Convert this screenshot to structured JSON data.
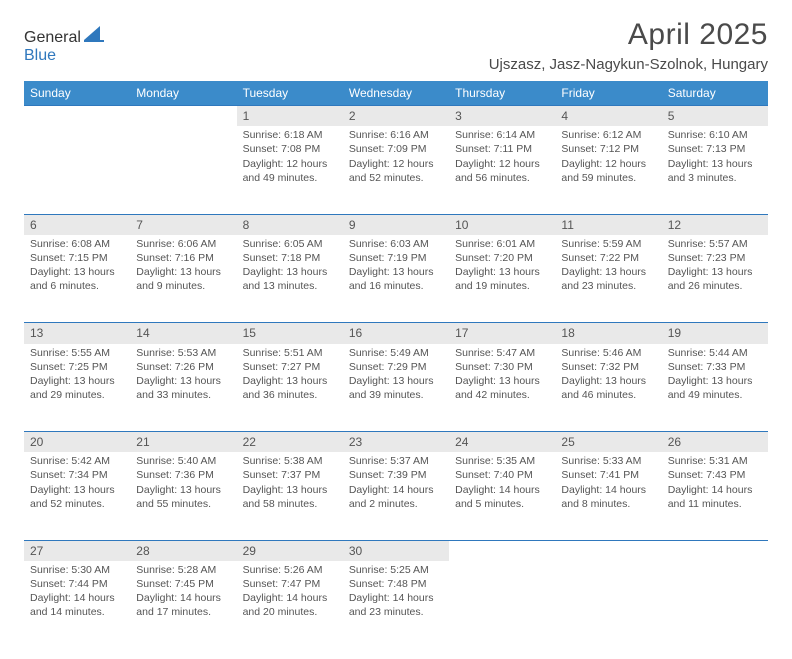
{
  "logo": {
    "part1": "General",
    "part2": "Blue",
    "shape_color": "#2f78bd"
  },
  "title": "April 2025",
  "location": "Ujszasz, Jasz-Nagykun-Szolnok, Hungary",
  "header_bg": "#3b8bca",
  "daynum_bg": "#e9e9e9",
  "border_color": "#2f78bd",
  "text_color": "#555555",
  "day_names": [
    "Sunday",
    "Monday",
    "Tuesday",
    "Wednesday",
    "Thursday",
    "Friday",
    "Saturday"
  ],
  "weeks": [
    [
      null,
      null,
      {
        "n": "1",
        "sr": "Sunrise: 6:18 AM",
        "ss": "Sunset: 7:08 PM",
        "dl": "Daylight: 12 hours and 49 minutes."
      },
      {
        "n": "2",
        "sr": "Sunrise: 6:16 AM",
        "ss": "Sunset: 7:09 PM",
        "dl": "Daylight: 12 hours and 52 minutes."
      },
      {
        "n": "3",
        "sr": "Sunrise: 6:14 AM",
        "ss": "Sunset: 7:11 PM",
        "dl": "Daylight: 12 hours and 56 minutes."
      },
      {
        "n": "4",
        "sr": "Sunrise: 6:12 AM",
        "ss": "Sunset: 7:12 PM",
        "dl": "Daylight: 12 hours and 59 minutes."
      },
      {
        "n": "5",
        "sr": "Sunrise: 6:10 AM",
        "ss": "Sunset: 7:13 PM",
        "dl": "Daylight: 13 hours and 3 minutes."
      }
    ],
    [
      {
        "n": "6",
        "sr": "Sunrise: 6:08 AM",
        "ss": "Sunset: 7:15 PM",
        "dl": "Daylight: 13 hours and 6 minutes."
      },
      {
        "n": "7",
        "sr": "Sunrise: 6:06 AM",
        "ss": "Sunset: 7:16 PM",
        "dl": "Daylight: 13 hours and 9 minutes."
      },
      {
        "n": "8",
        "sr": "Sunrise: 6:05 AM",
        "ss": "Sunset: 7:18 PM",
        "dl": "Daylight: 13 hours and 13 minutes."
      },
      {
        "n": "9",
        "sr": "Sunrise: 6:03 AM",
        "ss": "Sunset: 7:19 PM",
        "dl": "Daylight: 13 hours and 16 minutes."
      },
      {
        "n": "10",
        "sr": "Sunrise: 6:01 AM",
        "ss": "Sunset: 7:20 PM",
        "dl": "Daylight: 13 hours and 19 minutes."
      },
      {
        "n": "11",
        "sr": "Sunrise: 5:59 AM",
        "ss": "Sunset: 7:22 PM",
        "dl": "Daylight: 13 hours and 23 minutes."
      },
      {
        "n": "12",
        "sr": "Sunrise: 5:57 AM",
        "ss": "Sunset: 7:23 PM",
        "dl": "Daylight: 13 hours and 26 minutes."
      }
    ],
    [
      {
        "n": "13",
        "sr": "Sunrise: 5:55 AM",
        "ss": "Sunset: 7:25 PM",
        "dl": "Daylight: 13 hours and 29 minutes."
      },
      {
        "n": "14",
        "sr": "Sunrise: 5:53 AM",
        "ss": "Sunset: 7:26 PM",
        "dl": "Daylight: 13 hours and 33 minutes."
      },
      {
        "n": "15",
        "sr": "Sunrise: 5:51 AM",
        "ss": "Sunset: 7:27 PM",
        "dl": "Daylight: 13 hours and 36 minutes."
      },
      {
        "n": "16",
        "sr": "Sunrise: 5:49 AM",
        "ss": "Sunset: 7:29 PM",
        "dl": "Daylight: 13 hours and 39 minutes."
      },
      {
        "n": "17",
        "sr": "Sunrise: 5:47 AM",
        "ss": "Sunset: 7:30 PM",
        "dl": "Daylight: 13 hours and 42 minutes."
      },
      {
        "n": "18",
        "sr": "Sunrise: 5:46 AM",
        "ss": "Sunset: 7:32 PM",
        "dl": "Daylight: 13 hours and 46 minutes."
      },
      {
        "n": "19",
        "sr": "Sunrise: 5:44 AM",
        "ss": "Sunset: 7:33 PM",
        "dl": "Daylight: 13 hours and 49 minutes."
      }
    ],
    [
      {
        "n": "20",
        "sr": "Sunrise: 5:42 AM",
        "ss": "Sunset: 7:34 PM",
        "dl": "Daylight: 13 hours and 52 minutes."
      },
      {
        "n": "21",
        "sr": "Sunrise: 5:40 AM",
        "ss": "Sunset: 7:36 PM",
        "dl": "Daylight: 13 hours and 55 minutes."
      },
      {
        "n": "22",
        "sr": "Sunrise: 5:38 AM",
        "ss": "Sunset: 7:37 PM",
        "dl": "Daylight: 13 hours and 58 minutes."
      },
      {
        "n": "23",
        "sr": "Sunrise: 5:37 AM",
        "ss": "Sunset: 7:39 PM",
        "dl": "Daylight: 14 hours and 2 minutes."
      },
      {
        "n": "24",
        "sr": "Sunrise: 5:35 AM",
        "ss": "Sunset: 7:40 PM",
        "dl": "Daylight: 14 hours and 5 minutes."
      },
      {
        "n": "25",
        "sr": "Sunrise: 5:33 AM",
        "ss": "Sunset: 7:41 PM",
        "dl": "Daylight: 14 hours and 8 minutes."
      },
      {
        "n": "26",
        "sr": "Sunrise: 5:31 AM",
        "ss": "Sunset: 7:43 PM",
        "dl": "Daylight: 14 hours and 11 minutes."
      }
    ],
    [
      {
        "n": "27",
        "sr": "Sunrise: 5:30 AM",
        "ss": "Sunset: 7:44 PM",
        "dl": "Daylight: 14 hours and 14 minutes."
      },
      {
        "n": "28",
        "sr": "Sunrise: 5:28 AM",
        "ss": "Sunset: 7:45 PM",
        "dl": "Daylight: 14 hours and 17 minutes."
      },
      {
        "n": "29",
        "sr": "Sunrise: 5:26 AM",
        "ss": "Sunset: 7:47 PM",
        "dl": "Daylight: 14 hours and 20 minutes."
      },
      {
        "n": "30",
        "sr": "Sunrise: 5:25 AM",
        "ss": "Sunset: 7:48 PM",
        "dl": "Daylight: 14 hours and 23 minutes."
      },
      null,
      null,
      null
    ]
  ]
}
